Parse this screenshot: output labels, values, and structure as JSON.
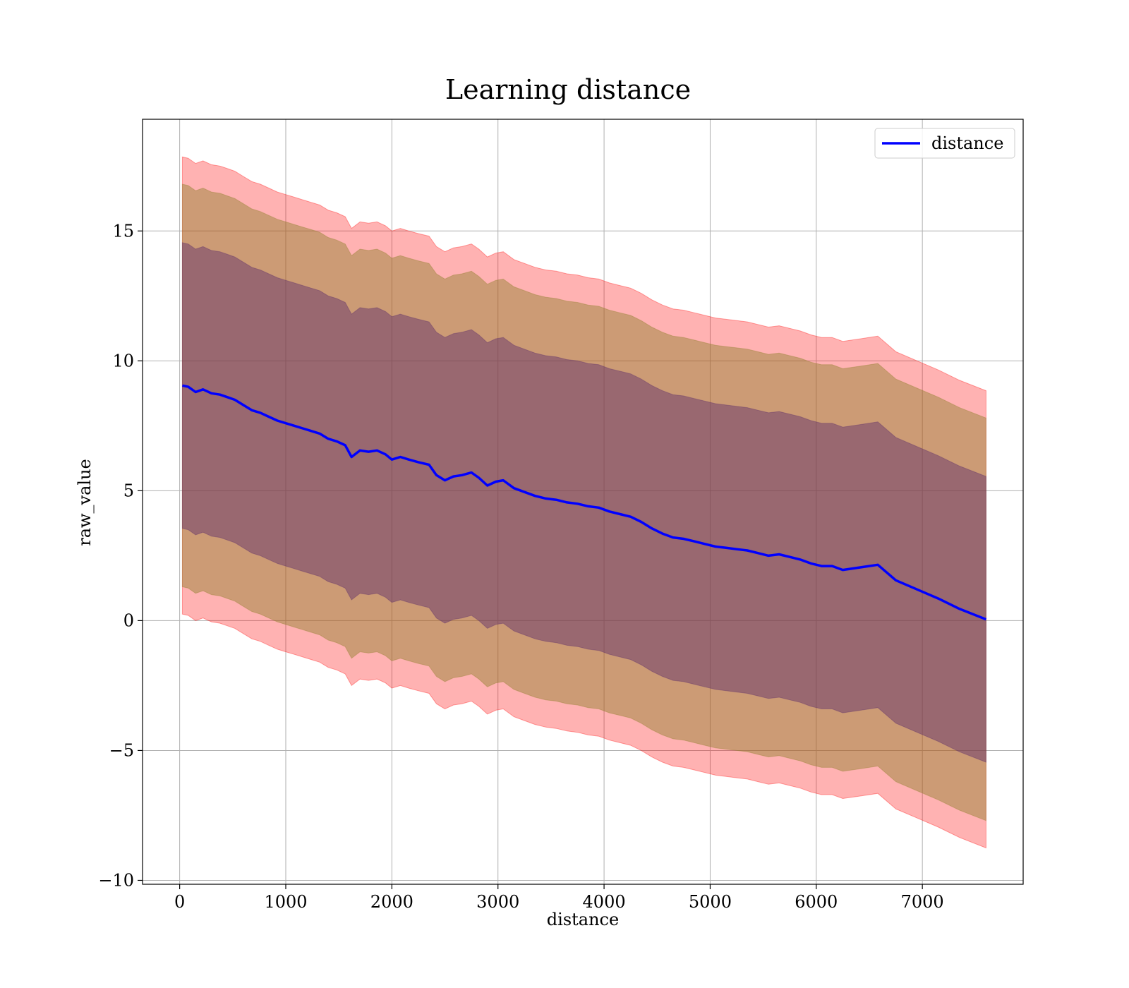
{
  "chart_data": {
    "type": "line",
    "title": "Learning distance",
    "xlabel": "distance",
    "ylabel": "raw_value",
    "xlim": [
      -350,
      7950
    ],
    "ylim": [
      -10.15,
      19.3
    ],
    "x_ticks": [
      0,
      1000,
      2000,
      3000,
      4000,
      5000,
      6000,
      7000
    ],
    "x_tick_labels": [
      "0",
      "1000",
      "2000",
      "3000",
      "4000",
      "5000",
      "6000",
      "7000"
    ],
    "y_ticks": [
      -10,
      -5,
      0,
      5,
      10,
      15
    ],
    "y_tick_labels": [
      "−10",
      "−5",
      "0",
      "5",
      "10",
      "15"
    ],
    "grid": true,
    "legend": {
      "position": "upper right",
      "entries": [
        "distance"
      ]
    },
    "colors": {
      "line": "#0000ff",
      "band_outer": "#ff0000",
      "band_middle": "#8f7f2a",
      "band_inner": "#5a2a6a",
      "grid": "#b0b0b0"
    },
    "series": [
      {
        "name": "distance",
        "x": [
          25,
          80,
          150,
          220,
          300,
          380,
          450,
          520,
          600,
          680,
          760,
          840,
          920,
          1000,
          1080,
          1160,
          1240,
          1320,
          1400,
          1480,
          1560,
          1620,
          1700,
          1780,
          1860,
          1940,
          2000,
          2080,
          2160,
          2250,
          2350,
          2420,
          2500,
          2580,
          2660,
          2750,
          2820,
          2900,
          2980,
          3050,
          3150,
          3250,
          3350,
          3450,
          3550,
          3650,
          3750,
          3850,
          3950,
          4050,
          4150,
          4250,
          4350,
          4450,
          4550,
          4650,
          4750,
          4850,
          4950,
          5050,
          5150,
          5250,
          5350,
          5450,
          5550,
          5650,
          5750,
          5850,
          5950,
          6050,
          6150,
          6250,
          6420,
          6580,
          6750,
          6950,
          7150,
          7350,
          7600
        ],
        "y": [
          9.05,
          9.0,
          8.8,
          8.9,
          8.75,
          8.7,
          8.6,
          8.5,
          8.3,
          8.1,
          8.0,
          7.85,
          7.7,
          7.6,
          7.5,
          7.4,
          7.3,
          7.2,
          7.0,
          6.9,
          6.75,
          6.3,
          6.55,
          6.5,
          6.55,
          6.4,
          6.2,
          6.3,
          6.2,
          6.1,
          6.0,
          5.6,
          5.4,
          5.55,
          5.6,
          5.7,
          5.5,
          5.2,
          5.35,
          5.4,
          5.1,
          4.95,
          4.8,
          4.7,
          4.65,
          4.55,
          4.5,
          4.4,
          4.35,
          4.2,
          4.1,
          4.0,
          3.8,
          3.55,
          3.35,
          3.2,
          3.15,
          3.05,
          2.95,
          2.85,
          2.8,
          2.75,
          2.7,
          2.6,
          2.5,
          2.55,
          2.45,
          2.35,
          2.2,
          2.1,
          2.1,
          1.95,
          2.05,
          2.15,
          1.55,
          1.2,
          0.85,
          0.45,
          0.05
        ]
      }
    ],
    "bands": [
      {
        "half_width": 8.8
      },
      {
        "half_width": 7.75
      },
      {
        "half_width": 5.5
      }
    ]
  }
}
